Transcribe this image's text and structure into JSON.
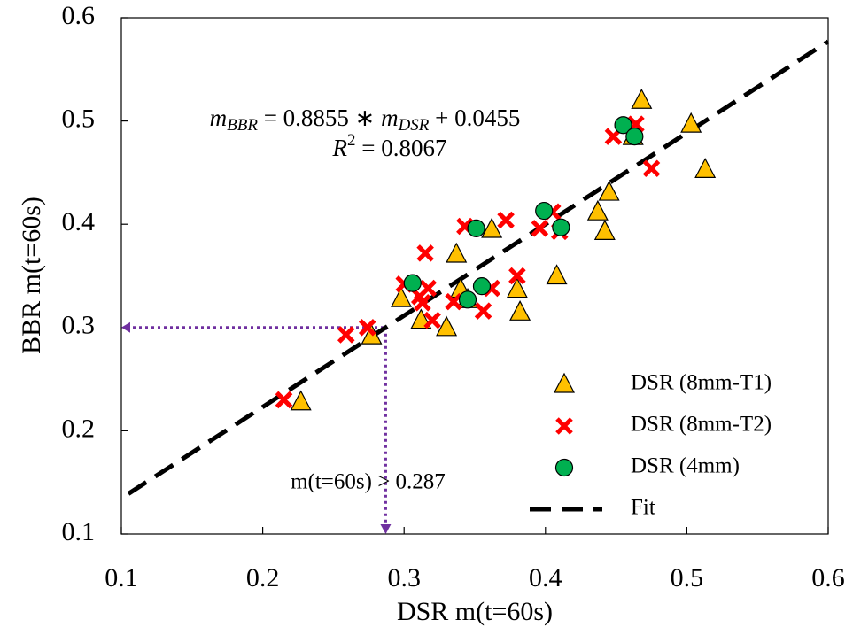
{
  "chart_data": {
    "type": "scatter",
    "x_label": "DSR m(t=60s)",
    "y_label": "BBR m(t=60s)",
    "xlim": [
      0.1,
      0.6
    ],
    "xticks": [
      0.1,
      0.2,
      0.3,
      0.4,
      0.5,
      0.6
    ],
    "ylim": [
      0.1,
      0.6
    ],
    "yticks": [
      0.1,
      0.2,
      0.3,
      0.4,
      0.5,
      0.6
    ],
    "legend": "lower right",
    "series": [
      {
        "name": "DSR (8mm-T1)",
        "marker": "triangle",
        "color": "#ffc000",
        "x": [
          0.227,
          0.277,
          0.298,
          0.312,
          0.33,
          0.337,
          0.34,
          0.345,
          0.362,
          0.38,
          0.382,
          0.408,
          0.437,
          0.442,
          0.445,
          0.462,
          0.468,
          0.503,
          0.513
        ],
        "values": [
          0.228,
          0.292,
          0.328,
          0.307,
          0.3,
          0.371,
          0.337,
          0.327,
          0.395,
          0.337,
          0.315,
          0.35,
          0.412,
          0.393,
          0.431,
          0.485,
          0.52,
          0.497,
          0.453
        ]
      },
      {
        "name": "DSR (8mm-T2)",
        "marker": "cross",
        "color": "#ff0000",
        "x": [
          0.215,
          0.259,
          0.274,
          0.3,
          0.311,
          0.313,
          0.315,
          0.317,
          0.32,
          0.335,
          0.343,
          0.356,
          0.362,
          0.372,
          0.38,
          0.396,
          0.405,
          0.41,
          0.448,
          0.464,
          0.475
        ],
        "values": [
          0.23,
          0.293,
          0.3,
          0.342,
          0.33,
          0.324,
          0.372,
          0.338,
          0.307,
          0.325,
          0.398,
          0.316,
          0.338,
          0.404,
          0.35,
          0.396,
          0.412,
          0.393,
          0.485,
          0.497,
          0.454
        ]
      },
      {
        "name": "DSR (4mm)",
        "marker": "circle",
        "color": "#00b050",
        "x": [
          0.306,
          0.345,
          0.351,
          0.355,
          0.399,
          0.411,
          0.455,
          0.463
        ],
        "values": [
          0.343,
          0.327,
          0.396,
          0.34,
          0.413,
          0.397,
          0.496,
          0.485
        ]
      },
      {
        "name": "Fit",
        "marker": "dashed-line",
        "color": "#000000",
        "x": [
          0.105,
          0.6
        ],
        "values": [
          0.139,
          0.577
        ]
      }
    ],
    "equation": {
      "m1": "m",
      "sub1": "BBR",
      "middle": " = 0.8855 ∗ ",
      "m2": "m",
      "sub2": "DSR",
      "end": " + 0.0455"
    },
    "r_squared": {
      "r": "R",
      "sup": "2",
      "end": " = 0.8067"
    },
    "guide": {
      "x": 0.287,
      "y": 0.3,
      "color": "#7030a0",
      "label": "m(t=60s) > 0.287"
    }
  }
}
